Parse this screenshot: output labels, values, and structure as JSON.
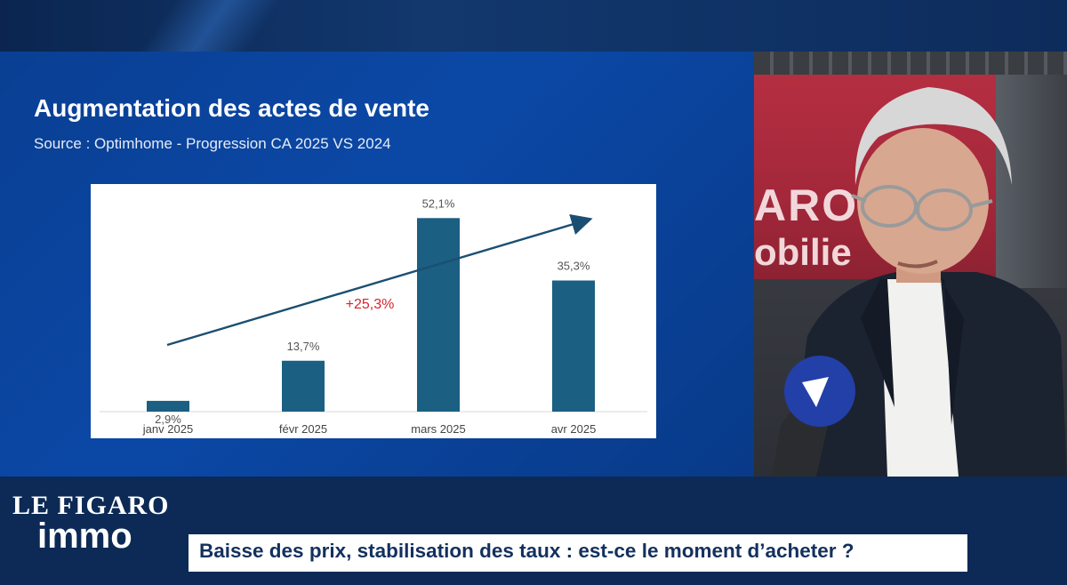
{
  "slide": {
    "title": "Augmentation des actes de vente",
    "source": "Source : Optimhome - Progression CA 2025 VS 2024"
  },
  "chart_data": {
    "type": "bar",
    "categories": [
      "janv 2025",
      "févr 2025",
      "mars 2025",
      "avr 2025"
    ],
    "values": [
      2.9,
      13.7,
      52.1,
      35.3
    ],
    "value_labels": [
      "2,9%",
      "13,7%",
      "52,1%",
      "35,3%"
    ],
    "annotation": "+25,3%",
    "trend_arrow": true,
    "title": "",
    "xlabel": "",
    "ylabel": "",
    "ylim": [
      0,
      56
    ],
    "grid": false,
    "bar_color": "#1b5f82",
    "annotation_color": "#d5232c"
  },
  "branding": {
    "logo_line1": "LE FIGARO",
    "logo_line2": "immo",
    "background_sign_line1": "ARO",
    "background_sign_line2": "obilie"
  },
  "lower_third": {
    "text": "Baisse des prix, stabilisation des taux : est-ce le moment d’acheter ?"
  },
  "colors": {
    "panel_blue": "#0b48a6",
    "frame_navy": "#0c2a55",
    "title_white": "#ffffff",
    "lower_third_text": "#13305e"
  }
}
